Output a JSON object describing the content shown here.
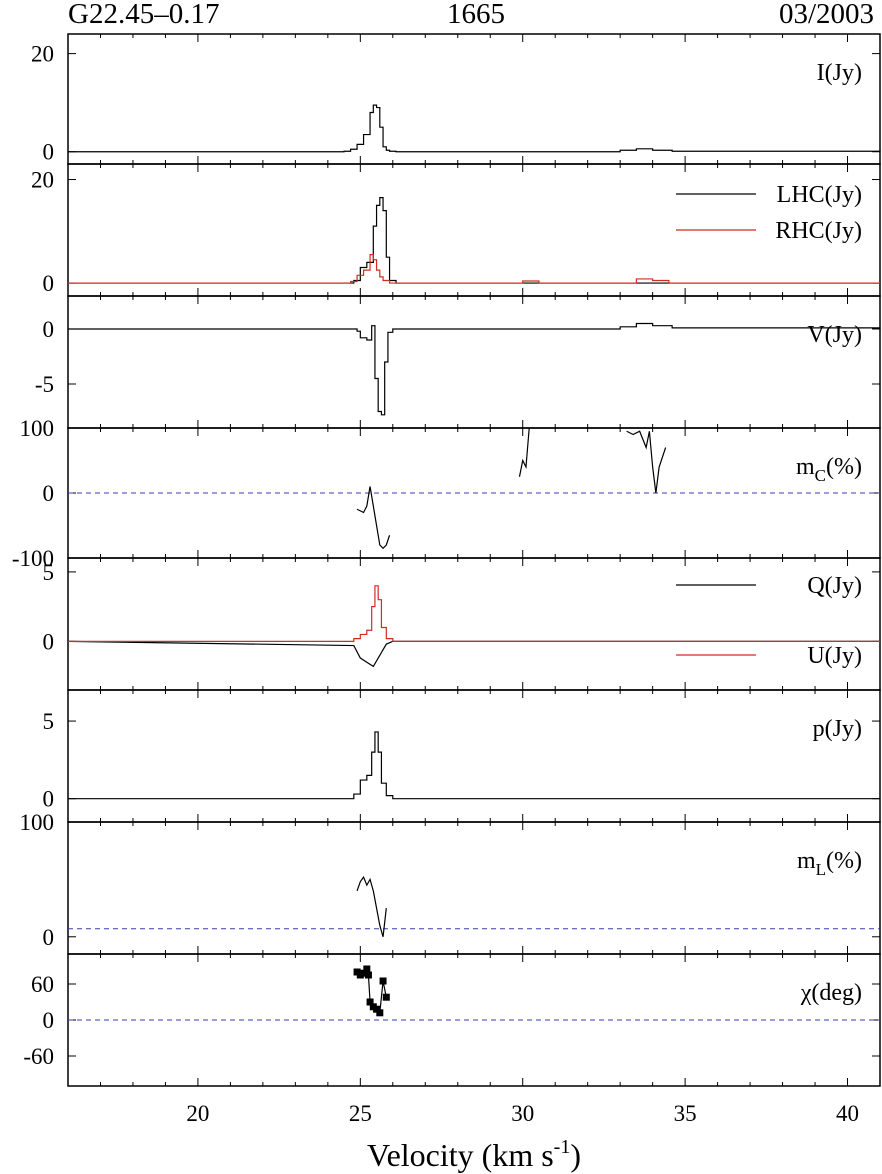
{
  "header": {
    "source": "G22.45–0.17",
    "frequency": "1665",
    "date": "03/2003"
  },
  "colors": {
    "black": "#000000",
    "red": "#d42a1f",
    "reference": "#3b3bb0"
  },
  "chart_data": {
    "type": "line",
    "style": "step",
    "xlabel": "Velocity (km s",
    "xlabel_sup": "-1",
    "xlabel_end": ")",
    "xlim": [
      16,
      41
    ],
    "xticks": [
      20,
      25,
      30,
      35,
      40
    ],
    "grid": false,
    "panels": [
      {
        "label": "I(Jy)",
        "ylim": [
          -2.5,
          24
        ],
        "yticks": [
          0,
          20
        ],
        "series": [
          {
            "color": "black",
            "x": [
              16,
              24.5,
              24.7,
              24.9,
              25.1,
              25.3,
              25.4,
              25.5,
              25.6,
              25.7,
              25.8,
              25.9,
              26.1,
              33.0,
              33.5,
              34.0,
              34.6,
              41
            ],
            "y": [
              0,
              0.1,
              0.5,
              1.5,
              3.5,
              8.0,
              9.5,
              9.0,
              5.0,
              1.0,
              0.3,
              0.1,
              0,
              0.3,
              0.6,
              0.3,
              0.1,
              0
            ]
          }
        ]
      },
      {
        "label": "",
        "legend": [
          "LHC(Jy)",
          "RHC(Jy)"
        ],
        "ylim": [
          -2.5,
          23
        ],
        "yticks": [
          0,
          20
        ],
        "series": [
          {
            "name": "LHC(Jy)",
            "color": "black",
            "x": [
              16,
              24.8,
              25.0,
              25.2,
              25.4,
              25.5,
              25.6,
              25.7,
              25.8,
              25.9,
              26.1,
              41
            ],
            "y": [
              0,
              0.5,
              3.0,
              4.0,
              11.0,
              15.0,
              16.5,
              14.0,
              5.0,
              0.5,
              0,
              0
            ]
          },
          {
            "name": "RHC(Jy)",
            "color": "red",
            "x": [
              16,
              24.7,
              24.9,
              25.1,
              25.3,
              25.4,
              25.5,
              25.6,
              25.7,
              25.9,
              29.5,
              30.0,
              30.5,
              33.0,
              33.5,
              34.0,
              34.5,
              41
            ],
            "y": [
              0,
              0.3,
              1.5,
              2.5,
              5.5,
              4.5,
              2.5,
              1.2,
              0.5,
              0,
              0,
              0.4,
              0,
              0,
              0.8,
              0.5,
              0,
              0
            ]
          }
        ]
      },
      {
        "label": "V(Jy)",
        "ylim": [
          -9,
          3
        ],
        "yticks": [
          0,
          -5
        ],
        "series": [
          {
            "color": "black",
            "x": [
              16,
              24.9,
              25.0,
              25.2,
              25.35,
              25.45,
              25.55,
              25.65,
              25.75,
              25.85,
              26.0,
              33.0,
              33.5,
              34.0,
              34.6,
              41
            ],
            "y": [
              0,
              -0.2,
              -0.8,
              -1.0,
              0.3,
              -4.5,
              -7.5,
              -7.8,
              -3.0,
              -0.3,
              0,
              0.2,
              0.5,
              0.3,
              0.1,
              0
            ]
          }
        ]
      },
      {
        "label": "m",
        "label_sub": "C",
        "label_end": "(%)",
        "ylim": [
          -100,
          100
        ],
        "yticks": [
          100,
          0,
          -100
        ],
        "ref": 0,
        "series": [
          {
            "color": "black",
            "x": [
              24.9,
              25.1,
              25.2,
              25.3,
              25.4,
              25.5,
              25.6,
              25.7,
              25.8,
              25.9
            ],
            "y": [
              -25,
              -30,
              -20,
              10,
              -20,
              -50,
              -80,
              -85,
              -80,
              -65
            ]
          },
          {
            "color": "black",
            "x": [
              29.9,
              30.0,
              30.1,
              30.2
            ],
            "y": [
              25,
              50,
              40,
              100
            ]
          },
          {
            "color": "black",
            "x": [
              33.2,
              33.4,
              33.6,
              33.8,
              33.9,
              34.0,
              34.1,
              34.2,
              34.4
            ],
            "y": [
              95,
              90,
              95,
              70,
              95,
              40,
              0,
              40,
              70
            ]
          }
        ]
      },
      {
        "label": "",
        "legend": [
          "Q(Jy)",
          "U(Jy)"
        ],
        "ylim": [
          -3.5,
          6
        ],
        "yticks": [
          5,
          0
        ],
        "series": [
          {
            "name": "Q(Jy)",
            "color": "black",
            "x": [
              16,
              24.8,
              25.0,
              25.2,
              25.4,
              25.6,
              25.8,
              26.0,
              41
            ],
            "y": [
              0,
              -0.3,
              -1.2,
              -1.5,
              -1.8,
              -1.0,
              -0.2,
              0,
              0
            ]
          },
          {
            "name": "U(Jy)",
            "color": "red",
            "x": [
              16,
              24.8,
              25.0,
              25.2,
              25.35,
              25.45,
              25.55,
              25.65,
              25.8,
              26.0,
              41
            ],
            "y": [
              0,
              0.2,
              0.5,
              0.8,
              2.5,
              4.0,
              3.0,
              1.0,
              0.2,
              0,
              0
            ]
          }
        ]
      },
      {
        "label": "p(Jy)",
        "ylim": [
          -1.5,
          7
        ],
        "yticks": [
          5,
          0
        ],
        "series": [
          {
            "color": "black",
            "x": [
              16,
              24.8,
              25.0,
              25.2,
              25.35,
              25.45,
              25.55,
              25.65,
              25.8,
              26.0,
              41
            ],
            "y": [
              0,
              0.3,
              1.2,
              1.5,
              3.0,
              4.3,
              3.0,
              1.0,
              0.2,
              0,
              0
            ]
          }
        ]
      },
      {
        "label": "m",
        "label_sub": "L",
        "label_end": "(%)",
        "ylim": [
          -15,
          100
        ],
        "yticks": [
          100,
          0
        ],
        "ref": 7,
        "series": [
          {
            "color": "black",
            "x": [
              24.9,
              25.0,
              25.1,
              25.2,
              25.3,
              25.4,
              25.5,
              25.6,
              25.7,
              25.8
            ],
            "y": [
              40,
              48,
              52,
              45,
              50,
              40,
              25,
              10,
              0,
              25
            ]
          }
        ]
      },
      {
        "label": "χ(deg)",
        "ylim": [
          -110,
          110
        ],
        "yticks": [
          60,
          0,
          -60
        ],
        "ref": 0,
        "series": [
          {
            "color": "black",
            "markers": true,
            "x": [
              24.9,
              25.0,
              25.1,
              25.2,
              25.25,
              25.3,
              25.4,
              25.5,
              25.6,
              25.7,
              25.8
            ],
            "y": [
              80,
              75,
              78,
              85,
              75,
              30,
              22,
              18,
              12,
              65,
              38
            ]
          }
        ]
      }
    ]
  }
}
